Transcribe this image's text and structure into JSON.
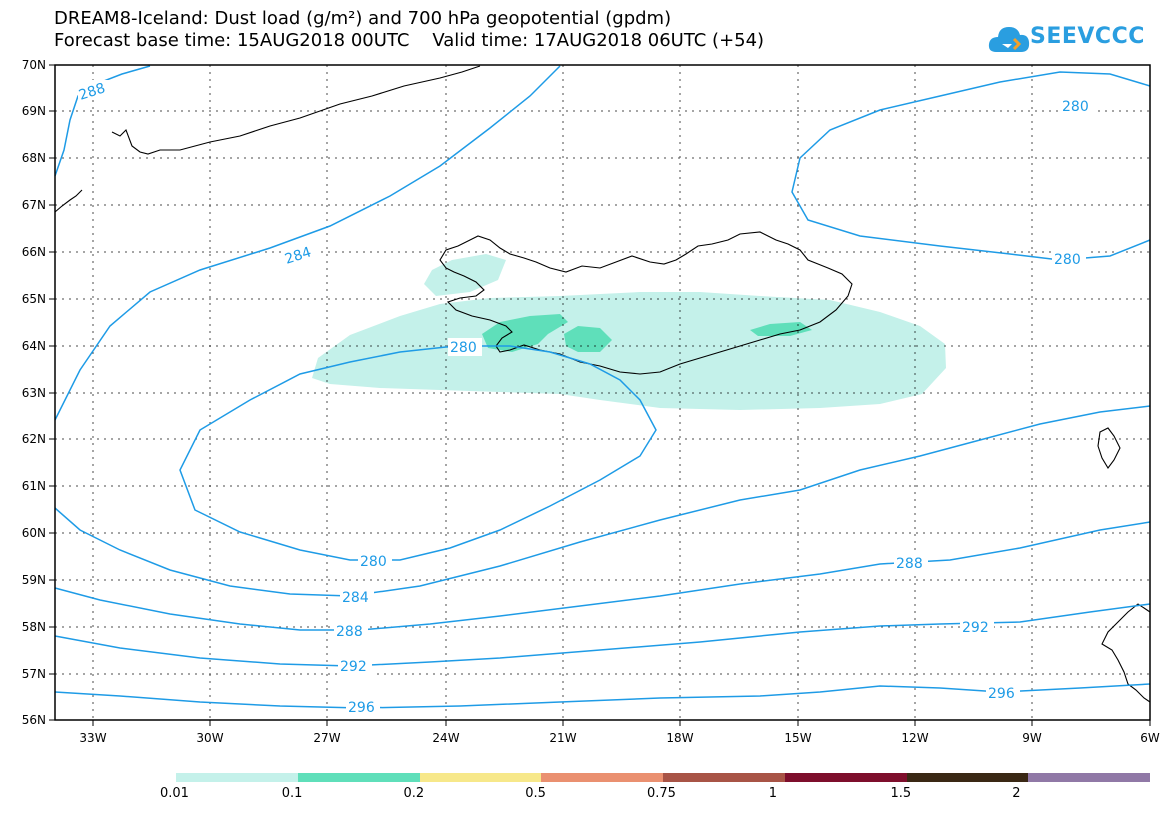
{
  "title_line1": "DREAM8-Iceland: Dust load (g/m²) and 700 hPa geopotential (gpdm)",
  "title_line2": "Forecast base time: 15AUG2018 00UTC    Valid time: 17AUG2018 06UTC (+54)",
  "logo": {
    "text": "SEEVCCC",
    "icon": "cloud-logo-icon",
    "color": "#2a9ee0"
  },
  "map": {
    "lon_ticks": [
      "33W",
      "30W",
      "27W",
      "24W",
      "21W",
      "18W",
      "15W",
      "12W",
      "9W",
      "6W"
    ],
    "lat_ticks": [
      "70N",
      "69N",
      "68N",
      "67N",
      "66N",
      "65N",
      "64N",
      "63N",
      "62N",
      "61N",
      "60N",
      "59N",
      "58N",
      "57N",
      "56N"
    ],
    "contour_color": "#1e9be6",
    "contour_labels": [
      "288",
      "284",
      "280",
      "280",
      "280",
      "280",
      "284",
      "288",
      "288",
      "292",
      "292",
      "296",
      "296"
    ],
    "dust_colors": {
      "low": "#c4f1ea",
      "mid": "#5fdfba"
    }
  },
  "legend": {
    "colors": [
      "#c4f1ea",
      "#5fdfba",
      "#f7e88a",
      "#ea9070",
      "#a85446",
      "#7e0e2c",
      "#3a2814",
      "#9078a6"
    ],
    "labels": [
      "0.01",
      "0.1",
      "0.2",
      "0.5",
      "0.75",
      "1",
      "1.5",
      "2"
    ]
  }
}
